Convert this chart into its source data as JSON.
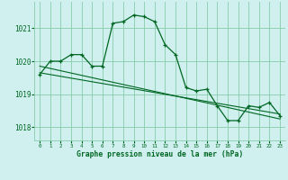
{
  "title": "Graphe pression niveau de la mer (hPa)",
  "background_color": "#cff0ee",
  "grid_color": "#88ccaa",
  "line_color": "#006622",
  "marker_color": "#006622",
  "xlim": [
    -0.5,
    23.5
  ],
  "ylim": [
    1017.6,
    1021.8
  ],
  "yticks": [
    1018,
    1019,
    1020,
    1021
  ],
  "xticks": [
    0,
    1,
    2,
    3,
    4,
    5,
    6,
    7,
    8,
    9,
    10,
    11,
    12,
    13,
    14,
    15,
    16,
    17,
    18,
    19,
    20,
    21,
    22,
    23
  ],
  "series1": {
    "x": [
      0,
      1,
      2,
      3,
      4,
      5,
      6,
      7,
      8,
      9,
      10,
      11,
      12,
      13,
      14,
      15,
      16,
      17,
      18,
      19,
      20,
      21,
      22,
      23
    ],
    "y": [
      1019.6,
      1020.0,
      1020.0,
      1020.2,
      1020.2,
      1019.85,
      1019.85,
      1021.15,
      1021.2,
      1021.4,
      1021.35,
      1021.2,
      1020.5,
      1020.2,
      1019.2,
      1019.1,
      1019.15,
      1018.65,
      1018.2,
      1018.2,
      1018.65,
      1018.6,
      1018.75,
      1018.35
    ]
  },
  "series2": {
    "x": [
      0,
      23
    ],
    "y": [
      1019.85,
      1018.25
    ]
  },
  "series3": {
    "x": [
      0,
      23
    ],
    "y": [
      1019.65,
      1018.4
    ]
  }
}
